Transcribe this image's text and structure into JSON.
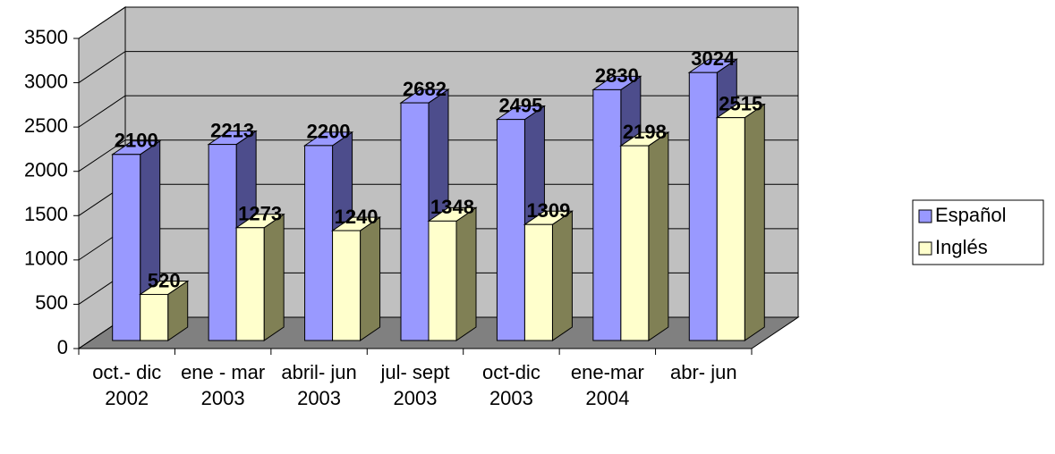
{
  "chart_data": {
    "type": "bar3d",
    "categories": [
      "oct.- dic 2002",
      "ene - mar 2003",
      "abril- jun 2003",
      "jul- sept 2003",
      "oct-dic 2003",
      "ene-mar 2004",
      "abr- jun"
    ],
    "series": [
      {
        "name": "Español",
        "color": "#9999ff",
        "side": "#4d4d8c",
        "values": [
          2100,
          2213,
          2200,
          2682,
          2495,
          2830,
          3024
        ]
      },
      {
        "name": "Inglés",
        "color": "#ffffcc",
        "side": "#808055",
        "values": [
          520,
          1273,
          1240,
          1348,
          1309,
          2198,
          2515
        ]
      }
    ],
    "ylim": [
      0,
      3500
    ],
    "yticks": [
      0,
      500,
      1000,
      1500,
      2000,
      2500,
      3000,
      3500
    ],
    "grid": true,
    "legend": "right"
  }
}
